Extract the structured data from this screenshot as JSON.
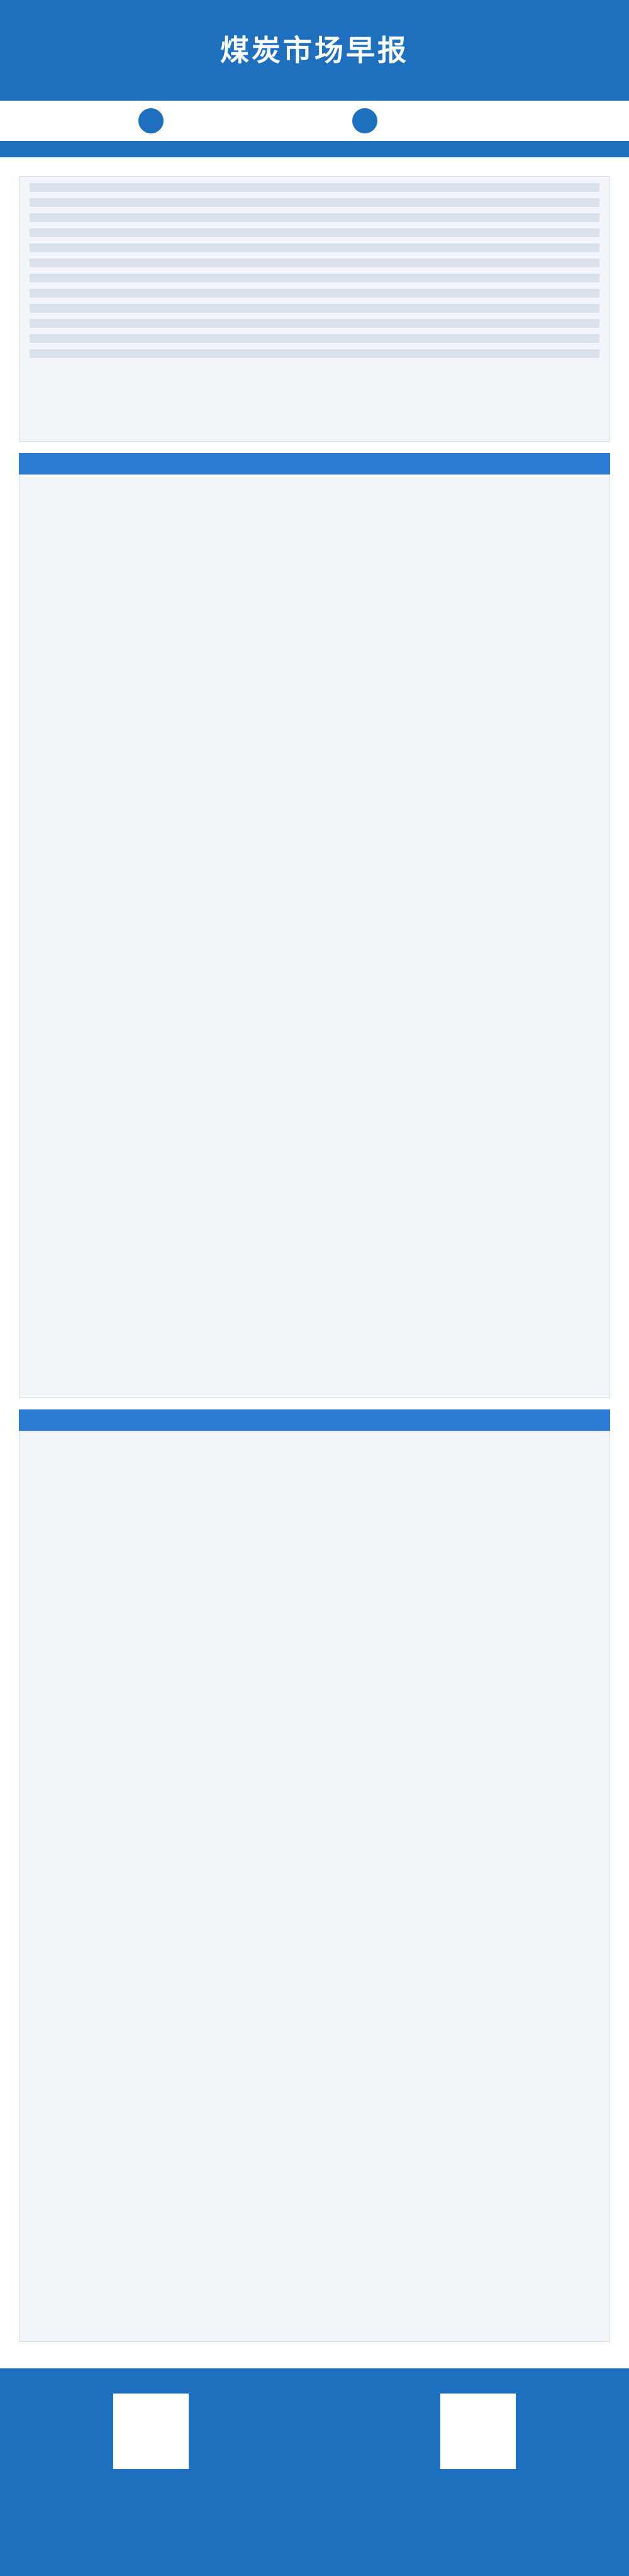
{
  "header": {
    "title": "煤炭市场早报"
  }
}
